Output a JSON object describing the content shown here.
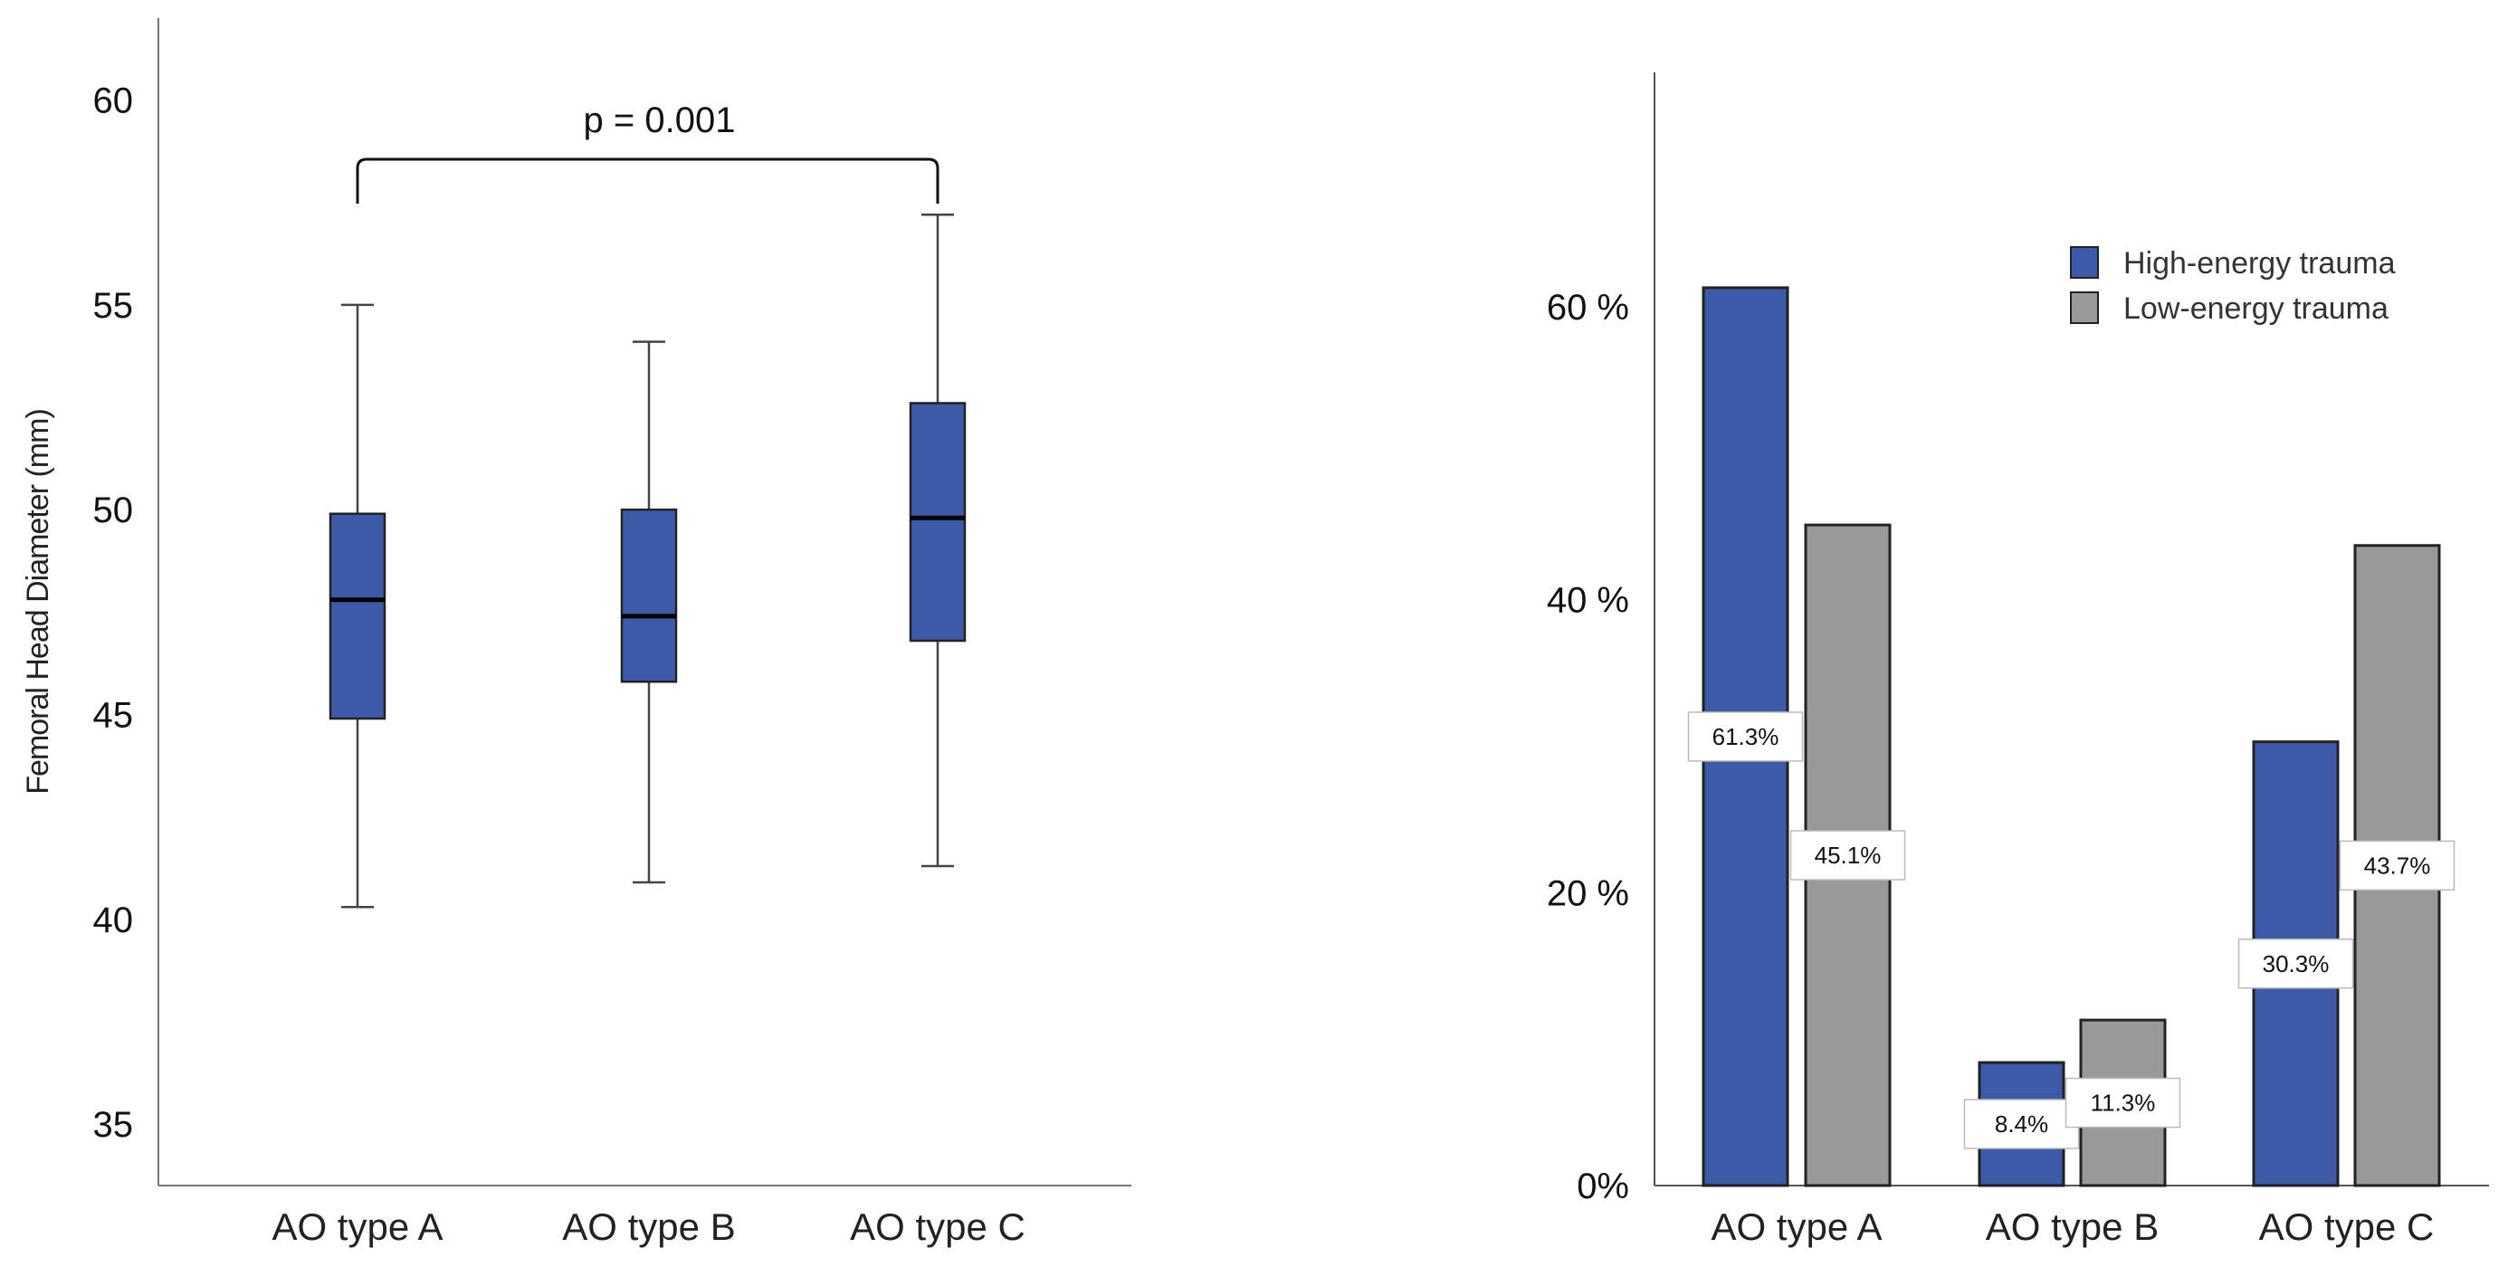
{
  "chart_data": [
    {
      "type": "boxplot",
      "title": "",
      "xlabel": "",
      "ylabel": "Femoral Head Diameter (mm)",
      "ylim": [
        33.5,
        62
      ],
      "yticks": [
        35,
        40,
        45,
        50,
        55,
        60
      ],
      "categories": [
        "AO type A",
        "AO type B",
        "AO type C"
      ],
      "boxes": [
        {
          "min": 40.3,
          "q1": 44.9,
          "median": 47.8,
          "q3": 49.9,
          "max": 55.0
        },
        {
          "min": 40.9,
          "q1": 45.8,
          "median": 47.4,
          "q3": 50.0,
          "max": 54.1
        },
        {
          "min": 41.3,
          "q1": 46.8,
          "median": 49.8,
          "q3": 52.6,
          "max": 57.2
        }
      ],
      "color": "#3d5aa8",
      "annotation": {
        "text": "p = 0.001",
        "from": "AO type A",
        "to": "AO type C"
      }
    },
    {
      "type": "bar",
      "title": "",
      "xlabel": "",
      "ylabel": "",
      "ylim": [
        0,
        76
      ],
      "yticks": [
        0,
        20,
        40,
        60
      ],
      "ytick_labels": [
        "0%",
        "20 %",
        "40 %",
        "60 %"
      ],
      "categories": [
        "AO type A",
        "AO type B",
        "AO type C"
      ],
      "series": [
        {
          "name": "High-energy trauma",
          "color": "#3d5aa8",
          "values": [
            61.3,
            8.4,
            30.3
          ],
          "labels": [
            "61.3%",
            "8.4%",
            "30.3%"
          ]
        },
        {
          "name": "Low-energy trauma",
          "color": "#999999",
          "values": [
            45.1,
            11.3,
            43.7
          ],
          "labels": [
            "45.1%",
            "11.3%",
            "43.7%"
          ]
        }
      ],
      "legend": "top-right"
    }
  ]
}
